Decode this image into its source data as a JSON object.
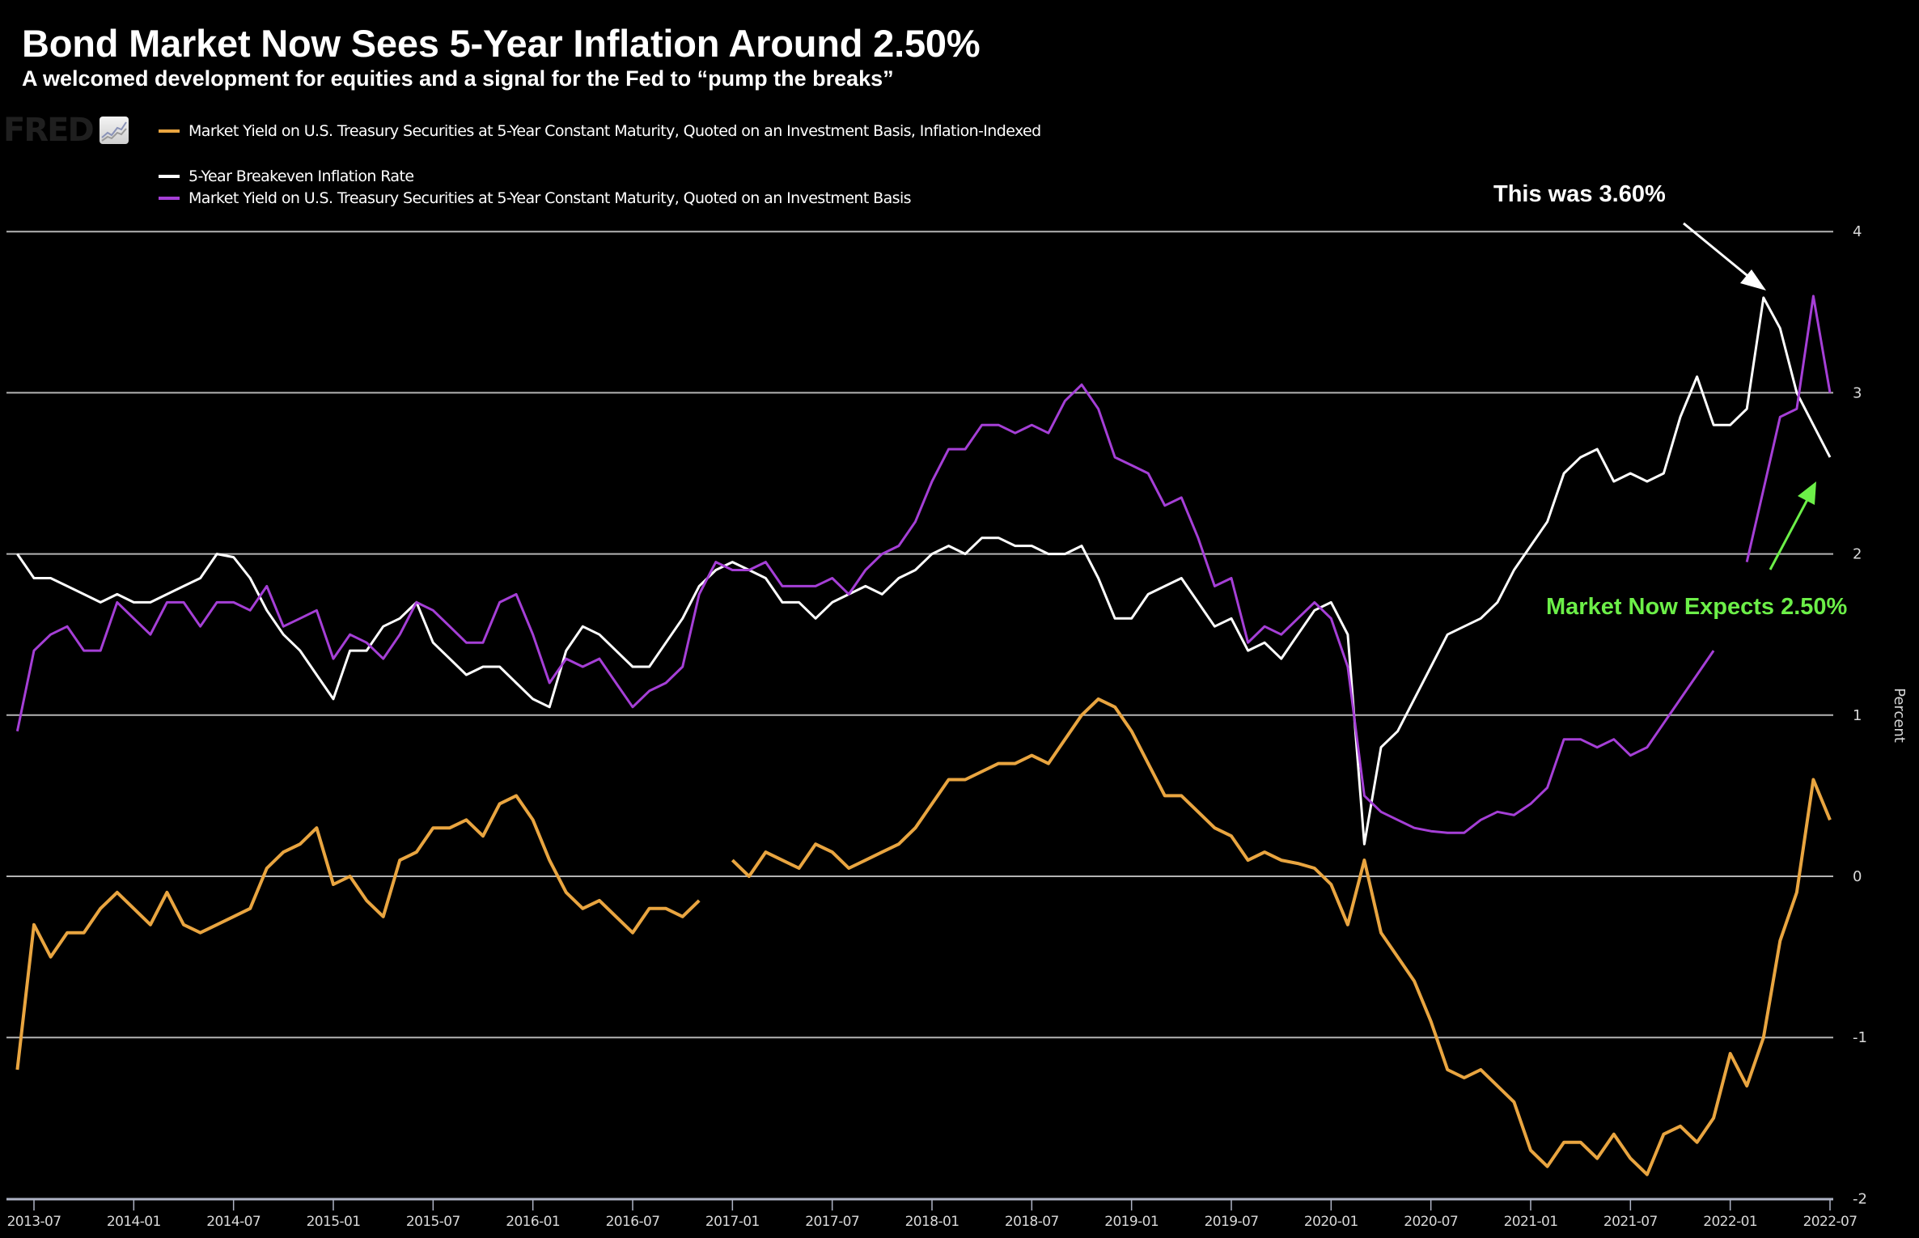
{
  "header": {
    "title": "Bond Market Now Sees 5-Year Inflation Around 2.50%",
    "subtitle": "A welcomed development for equities and a signal for the Fed to “pump the breaks”"
  },
  "branding": {
    "logo_text": "FRED",
    "logo_icon": "line-chart-icon"
  },
  "annotations": [
    {
      "text": "This was 3.60%",
      "color": "#ffffff",
      "points_to": "5-Year Breakeven Inflation Rate peak (2022-03)"
    },
    {
      "text": "Market Now Expects 2.50%",
      "color": "#6cef48",
      "points_to": "5-Year Breakeven Inflation Rate latest (2022-06)"
    }
  ],
  "chart_data": {
    "type": "line",
    "title": "Bond Market Now Sees 5-Year Inflation Around 2.50%",
    "subtitle": "A welcomed development for equities and a signal for the Fed to “pump the breaks”",
    "xlabel": "",
    "ylabel": "Percent",
    "ylim": [
      -2,
      4
    ],
    "yticks": [
      4,
      3,
      2,
      1,
      0,
      -1,
      -2
    ],
    "xticks": [
      "2013-07",
      "2014-01",
      "2014-07",
      "2015-01",
      "2015-07",
      "2016-01",
      "2016-07",
      "2017-01",
      "2017-07",
      "2018-01",
      "2018-07",
      "2019-01",
      "2019-07",
      "2020-01",
      "2020-07",
      "2021-01",
      "2021-07",
      "2022-01",
      "2022-07"
    ],
    "xlim": [
      "2013-06",
      "2022-07"
    ],
    "grid": true,
    "legend_position": "top-left",
    "x_start": "2013-06",
    "x_step": "month",
    "series": [
      {
        "name": "Market Yield on U.S. Treasury Securities at 5-Year Constant Maturity, Quoted on an Investment Basis, Inflation-Indexed",
        "color": "#e9a540",
        "values": [
          -1.2,
          -0.3,
          -0.5,
          -0.35,
          -0.35,
          -0.2,
          -0.1,
          -0.2,
          -0.3,
          -0.1,
          -0.3,
          -0.35,
          -0.3,
          -0.25,
          -0.2,
          0.05,
          0.15,
          0.2,
          0.3,
          -0.05,
          0.0,
          -0.15,
          -0.25,
          0.1,
          0.15,
          0.3,
          0.3,
          0.35,
          0.25,
          0.45,
          0.5,
          0.35,
          0.1,
          -0.1,
          -0.2,
          -0.15,
          -0.25,
          -0.35,
          -0.2,
          -0.2,
          -0.25,
          -0.15,
          null,
          0.1,
          0.0,
          0.15,
          0.1,
          0.05,
          0.2,
          0.15,
          0.05,
          0.1,
          0.15,
          0.2,
          0.3,
          0.45,
          0.6,
          0.6,
          0.65,
          0.7,
          0.7,
          0.75,
          0.7,
          0.85,
          1.0,
          1.1,
          1.05,
          0.9,
          0.7,
          0.5,
          0.5,
          0.4,
          0.3,
          0.25,
          0.1,
          0.15,
          0.1,
          0.08,
          0.05,
          -0.05,
          -0.3,
          0.1,
          -0.35,
          -0.5,
          -0.65,
          -0.9,
          -1.2,
          -1.25,
          -1.2,
          -1.3,
          -1.4,
          -1.7,
          -1.8,
          -1.65,
          -1.65,
          -1.75,
          -1.6,
          -1.75,
          -1.85,
          -1.6,
          -1.55,
          -1.65,
          -1.5,
          -1.1,
          -1.3,
          -1.0,
          -0.4,
          -0.1,
          0.6,
          0.35
        ]
      },
      {
        "name": "5-Year Breakeven Inflation Rate",
        "color": "#ffffff",
        "values": [
          2.0,
          1.85,
          1.85,
          1.8,
          1.75,
          1.7,
          1.75,
          1.7,
          1.7,
          1.75,
          1.8,
          1.85,
          2.0,
          1.98,
          1.85,
          1.65,
          1.5,
          1.4,
          1.25,
          1.1,
          1.4,
          1.4,
          1.55,
          1.6,
          1.7,
          1.45,
          1.35,
          1.25,
          1.3,
          1.3,
          1.2,
          1.1,
          1.05,
          1.4,
          1.55,
          1.5,
          1.4,
          1.3,
          1.3,
          1.45,
          1.6,
          1.8,
          1.9,
          1.95,
          1.9,
          1.85,
          1.7,
          1.7,
          1.6,
          1.7,
          1.75,
          1.8,
          1.75,
          1.85,
          1.9,
          2.0,
          2.05,
          2.0,
          2.1,
          2.1,
          2.05,
          2.05,
          2.0,
          2.0,
          2.05,
          1.85,
          1.6,
          1.6,
          1.75,
          1.8,
          1.85,
          1.7,
          1.55,
          1.6,
          1.4,
          1.45,
          1.35,
          1.5,
          1.65,
          1.7,
          1.5,
          0.2,
          0.8,
          0.9,
          1.1,
          1.3,
          1.5,
          1.55,
          1.6,
          1.7,
          1.9,
          2.05,
          2.2,
          2.5,
          2.6,
          2.65,
          2.45,
          2.5,
          2.45,
          2.5,
          2.85,
          3.1,
          2.8,
          2.8,
          2.9,
          3.59,
          3.4,
          3.0,
          2.8,
          2.6
        ]
      },
      {
        "name": "Market Yield on U.S. Treasury Securities at 5-Year Constant Maturity, Quoted on an Investment Basis",
        "color": "#a53fd6",
        "values": [
          0.9,
          1.4,
          1.5,
          1.55,
          1.4,
          1.4,
          1.7,
          1.6,
          1.5,
          1.7,
          1.7,
          1.55,
          1.7,
          1.7,
          1.65,
          1.8,
          1.55,
          1.6,
          1.65,
          1.35,
          1.5,
          1.45,
          1.35,
          1.5,
          1.7,
          1.65,
          1.55,
          1.45,
          1.45,
          1.7,
          1.75,
          1.5,
          1.2,
          1.35,
          1.3,
          1.35,
          1.2,
          1.05,
          1.15,
          1.2,
          1.3,
          1.75,
          1.95,
          1.9,
          1.9,
          1.95,
          1.8,
          1.8,
          1.8,
          1.85,
          1.75,
          1.9,
          2.0,
          2.05,
          2.2,
          2.45,
          2.65,
          2.65,
          2.8,
          2.8,
          2.75,
          2.8,
          2.75,
          2.95,
          3.05,
          2.9,
          2.6,
          2.55,
          2.5,
          2.3,
          2.35,
          2.1,
          1.8,
          1.85,
          1.45,
          1.55,
          1.5,
          1.6,
          1.7,
          1.6,
          1.3,
          0.5,
          0.4,
          0.35,
          0.3,
          0.28,
          0.27,
          0.27,
          0.35,
          0.4,
          0.38,
          0.45,
          0.55,
          0.85,
          0.85,
          0.8,
          0.85,
          0.75,
          0.8,
          0.95,
          1.1,
          1.25,
          1.4,
          null,
          1.95,
          2.4,
          2.85,
          2.9,
          3.6,
          3.0
        ]
      }
    ]
  }
}
